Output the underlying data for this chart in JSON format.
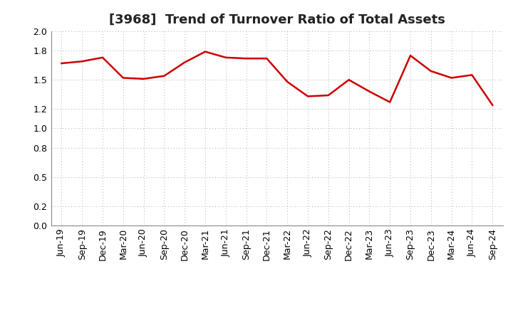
{
  "title": "[3968]  Trend of Turnover Ratio of Total Assets",
  "x_labels": [
    "Jun-19",
    "Sep-19",
    "Dec-19",
    "Mar-20",
    "Jun-20",
    "Sep-20",
    "Dec-20",
    "Mar-21",
    "Jun-21",
    "Sep-21",
    "Dec-21",
    "Mar-22",
    "Jun-22",
    "Sep-22",
    "Dec-22",
    "Mar-23",
    "Jun-23",
    "Sep-23",
    "Dec-23",
    "Mar-24",
    "Jun-24",
    "Sep-24"
  ],
  "y_values": [
    1.67,
    1.69,
    1.73,
    1.52,
    1.51,
    1.54,
    1.68,
    1.79,
    1.73,
    1.72,
    1.72,
    1.48,
    1.33,
    1.34,
    1.5,
    1.38,
    1.27,
    1.75,
    1.59,
    1.52,
    1.55,
    1.24
  ],
  "line_color": "#cc0000",
  "line_width": 1.8,
  "ylim": [
    0.0,
    2.0
  ],
  "yticks": [
    0.0,
    0.2,
    0.5,
    0.8,
    1.0,
    1.2,
    1.5,
    1.8,
    2.0
  ],
  "grid_color": "#aaaaaa",
  "background_color": "#ffffff",
  "title_fontsize": 13,
  "tick_fontsize": 9,
  "title_color": "#222222",
  "spine_color": "#888888"
}
